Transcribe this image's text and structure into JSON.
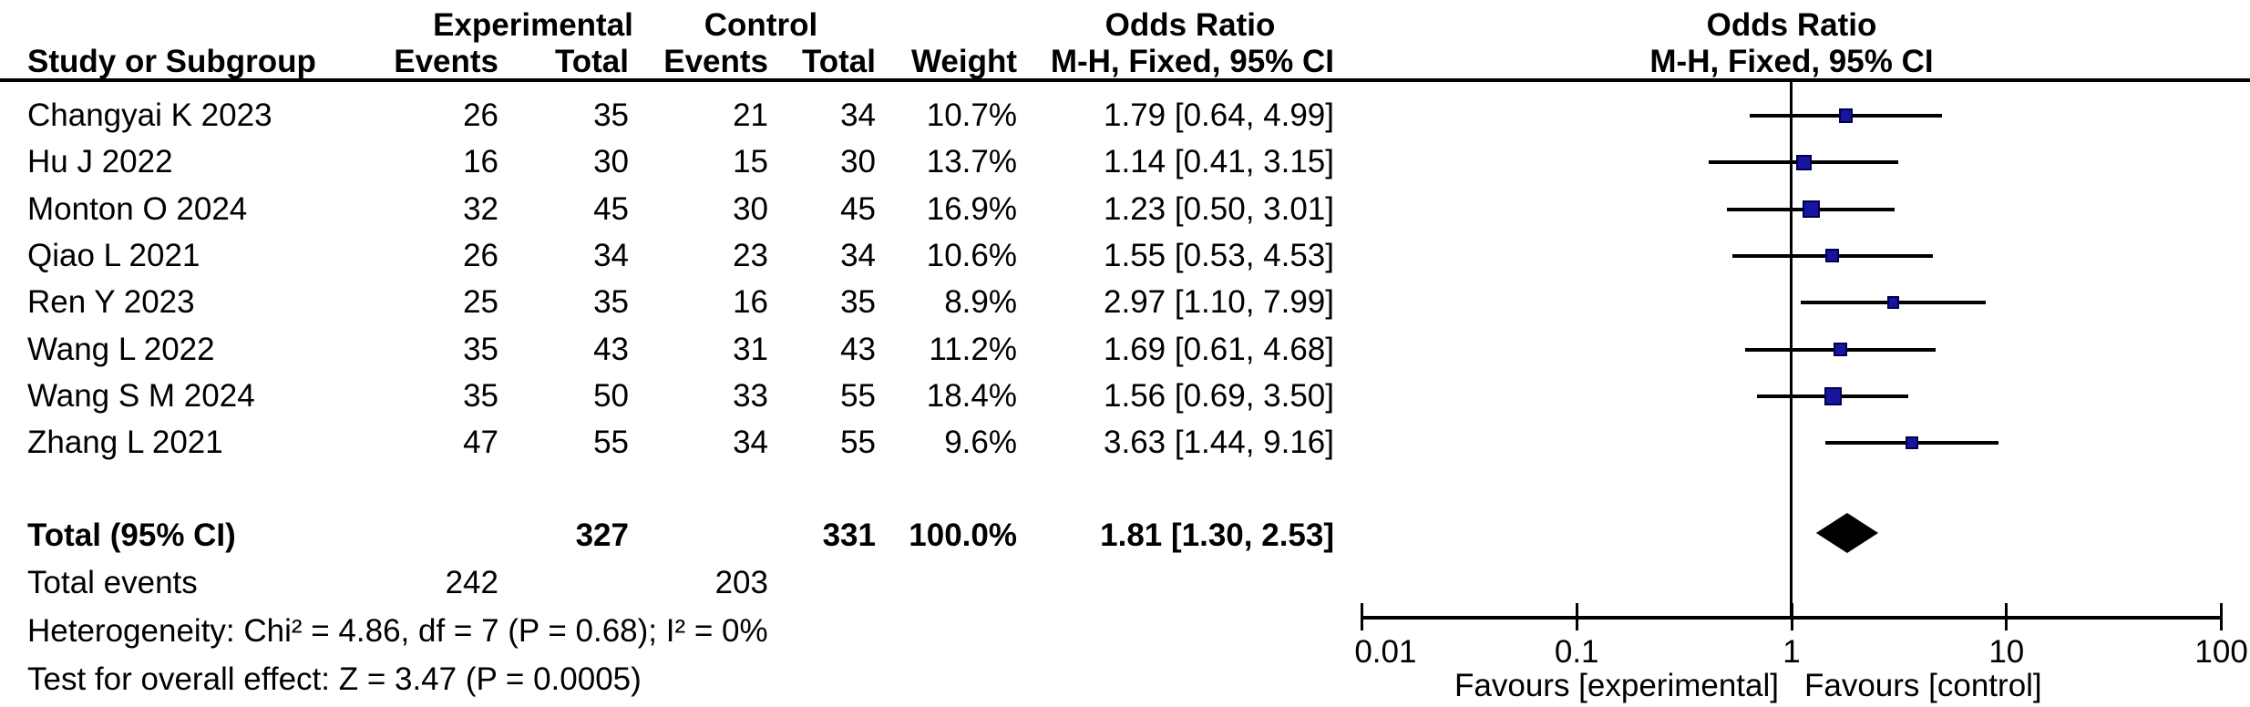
{
  "headers": {
    "experimental": "Experimental",
    "control": "Control",
    "odds_ratio_left": "Odds Ratio",
    "odds_ratio_right": "Odds Ratio",
    "study_or_subgroup": "Study or Subgroup",
    "events": "Events",
    "total": "Total",
    "weight": "Weight",
    "mh_fixed_ci": "M-H, Fixed, 95% CI",
    "mh_fixed_ci_right": "M-H, Fixed, 95% CI"
  },
  "studies": [
    {
      "name": "Changyai K 2023",
      "exp_events": "26",
      "exp_total": "35",
      "ctl_events": "21",
      "ctl_total": "34",
      "weight": "10.7%",
      "or_ci": "1.79 [0.64, 4.99]",
      "or": 1.79,
      "ci_low": 0.64,
      "ci_high": 4.99,
      "weight_pct": 10.7
    },
    {
      "name": "Hu J 2022",
      "exp_events": "16",
      "exp_total": "30",
      "ctl_events": "15",
      "ctl_total": "30",
      "weight": "13.7%",
      "or_ci": "1.14 [0.41, 3.15]",
      "or": 1.14,
      "ci_low": 0.41,
      "ci_high": 3.15,
      "weight_pct": 13.7
    },
    {
      "name": "Monton O 2024",
      "exp_events": "32",
      "exp_total": "45",
      "ctl_events": "30",
      "ctl_total": "45",
      "weight": "16.9%",
      "or_ci": "1.23 [0.50, 3.01]",
      "or": 1.23,
      "ci_low": 0.5,
      "ci_high": 3.01,
      "weight_pct": 16.9
    },
    {
      "name": "Qiao L 2021",
      "exp_events": "26",
      "exp_total": "34",
      "ctl_events": "23",
      "ctl_total": "34",
      "weight": "10.6%",
      "or_ci": "1.55 [0.53, 4.53]",
      "or": 1.55,
      "ci_low": 0.53,
      "ci_high": 4.53,
      "weight_pct": 10.6
    },
    {
      "name": "Ren Y 2023",
      "exp_events": "25",
      "exp_total": "35",
      "ctl_events": "16",
      "ctl_total": "35",
      "weight": "8.9%",
      "or_ci": "2.97 [1.10, 7.99]",
      "or": 2.97,
      "ci_low": 1.1,
      "ci_high": 7.99,
      "weight_pct": 8.9
    },
    {
      "name": "Wang L 2022",
      "exp_events": "35",
      "exp_total": "43",
      "ctl_events": "31",
      "ctl_total": "43",
      "weight": "11.2%",
      "or_ci": "1.69 [0.61, 4.68]",
      "or": 1.69,
      "ci_low": 0.61,
      "ci_high": 4.68,
      "weight_pct": 11.2
    },
    {
      "name": "Wang S M 2024",
      "exp_events": "35",
      "exp_total": "50",
      "ctl_events": "33",
      "ctl_total": "55",
      "weight": "18.4%",
      "or_ci": "1.56 [0.69, 3.50]",
      "or": 1.56,
      "ci_low": 0.69,
      "ci_high": 3.5,
      "weight_pct": 18.4
    },
    {
      "name": "Zhang L 2021",
      "exp_events": "47",
      "exp_total": "55",
      "ctl_events": "34",
      "ctl_total": "55",
      "weight": "9.6%",
      "or_ci": "3.63 [1.44, 9.16]",
      "or": 3.63,
      "ci_low": 1.44,
      "ci_high": 9.16,
      "weight_pct": 9.6
    }
  ],
  "totals": {
    "label": "Total (95% CI)",
    "exp_total": "327",
    "ctl_total": "331",
    "weight": "100.0%",
    "or_ci": "1.81 [1.30, 2.53]",
    "or": 1.81,
    "ci_low": 1.3,
    "ci_high": 2.53,
    "events_label": "Total events",
    "exp_events": "242",
    "ctl_events": "203"
  },
  "footnotes": {
    "heterogeneity": "Heterogeneity: Chi² = 4.86, df = 7 (P = 0.68); I² = 0%",
    "overall_effect": "Test for overall effect: Z = 3.47 (P = 0.0005)"
  },
  "axis": {
    "tick_values": [
      0.01,
      0.1,
      1,
      10,
      100
    ],
    "tick_labels": [
      "0.01",
      "0.1",
      "1",
      "10",
      "100"
    ],
    "favours_left": "Favours [experimental]",
    "favours_right": "Favours [control]"
  },
  "colors": {
    "marker_fill": "#1515a0",
    "marker_border": "#00004d",
    "line": "#000000",
    "diamond": "#000000"
  },
  "chart_data": {
    "type": "scatter",
    "variant": "forest_plot_meta_analysis",
    "title": "Odds Ratio",
    "effect_measure": "M-H, Fixed, 95% CI",
    "x_scale": "log10",
    "xlim": [
      0.01,
      100
    ],
    "x_ticks": [
      0.01,
      0.1,
      1,
      10,
      100
    ],
    "reference_line": 1,
    "series": [
      {
        "name": "Changyai K 2023",
        "or": 1.79,
        "ci": [
          0.64,
          4.99
        ],
        "weight_pct": 10.7
      },
      {
        "name": "Hu J 2022",
        "or": 1.14,
        "ci": [
          0.41,
          3.15
        ],
        "weight_pct": 13.7
      },
      {
        "name": "Monton O 2024",
        "or": 1.23,
        "ci": [
          0.5,
          3.01
        ],
        "weight_pct": 16.9
      },
      {
        "name": "Qiao L 2021",
        "or": 1.55,
        "ci": [
          0.53,
          4.53
        ],
        "weight_pct": 10.6
      },
      {
        "name": "Ren Y 2023",
        "or": 2.97,
        "ci": [
          1.1,
          7.99
        ],
        "weight_pct": 8.9
      },
      {
        "name": "Wang L 2022",
        "or": 1.69,
        "ci": [
          0.61,
          4.68
        ],
        "weight_pct": 11.2
      },
      {
        "name": "Wang S M 2024",
        "or": 1.56,
        "ci": [
          0.69,
          3.5
        ],
        "weight_pct": 18.4
      },
      {
        "name": "Zhang L 2021",
        "or": 3.63,
        "ci": [
          1.44,
          9.16
        ],
        "weight_pct": 9.6
      }
    ],
    "total": {
      "name": "Total (95% CI)",
      "or": 1.81,
      "ci": [
        1.3,
        2.53
      ],
      "weight_pct": 100.0
    },
    "annotations": [
      "Favours [experimental]",
      "Favours [control]"
    ],
    "legend": "none",
    "grid": false
  }
}
